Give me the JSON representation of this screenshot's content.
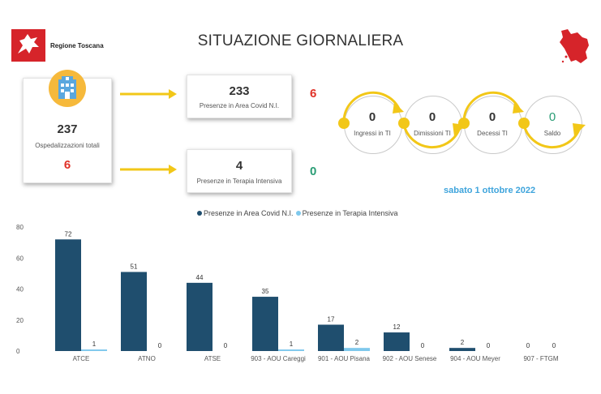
{
  "header": {
    "org_name": "Regione Toscana",
    "title": "SITUAZIONE GIORNALIERA",
    "logo_icon": "pegasus-logo-icon",
    "map_icon": "tuscany-map-icon"
  },
  "totals": {
    "hospitalizations_value": "237",
    "hospitalizations_label": "Ospedalizzazioni totali",
    "hospitalizations_delta": "6",
    "icon": "hospital-icon"
  },
  "area_covid": {
    "value": "233",
    "label": "Presenze in Area Covid N.I.",
    "delta": "6"
  },
  "intensive_care": {
    "value": "4",
    "label": "Presenze in Terapia Intensiva",
    "delta": "0"
  },
  "flow": [
    {
      "value": "0",
      "label": "Ingressi in TI"
    },
    {
      "value": "0",
      "label": "Dimissioni TI"
    },
    {
      "value": "0",
      "label": "Decessi TI"
    },
    {
      "value": "0",
      "label": "Saldo"
    }
  ],
  "date": "sabato 1 ottobre 2022",
  "colors": {
    "dark_series": "#1f4e6e",
    "light_series": "#7ec8ec",
    "arrow": "#f2c718",
    "red": "#e03127",
    "green": "#2a9d75",
    "date_blue": "#3ea4dc"
  },
  "chart_data": {
    "type": "bar",
    "categories": [
      "ATCE",
      "ATNO",
      "ATSE",
      "903 - AOU Careggi",
      "901 - AOU Pisana",
      "902 - AOU Senese",
      "904 - AOU Meyer",
      "907 - FTGM"
    ],
    "series": [
      {
        "name": "Presenze in Area Covid N.I.",
        "values": [
          72,
          51,
          44,
          35,
          17,
          12,
          2,
          0
        ]
      },
      {
        "name": "Presenze in Terapia Intensiva",
        "values": [
          1,
          0,
          0,
          1,
          2,
          0,
          0,
          0
        ]
      }
    ],
    "yticks": [
      0,
      20,
      40,
      60,
      80
    ],
    "ylim": [
      0,
      80
    ],
    "legend": "top-center",
    "grid": false
  }
}
